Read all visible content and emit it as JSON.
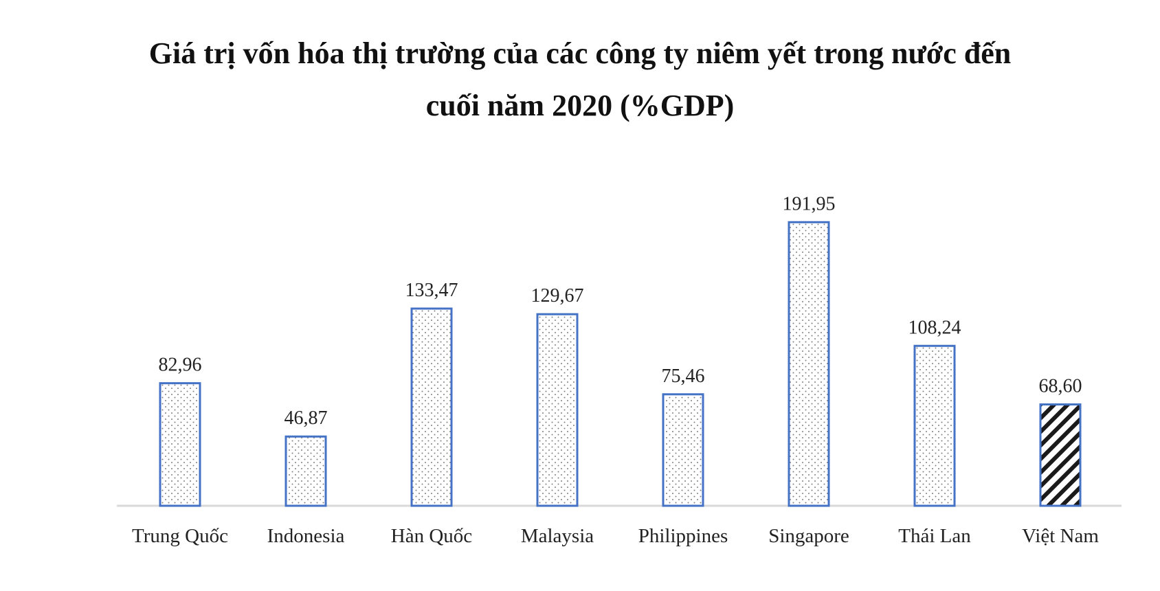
{
  "chart_data": {
    "type": "bar",
    "title_lines": [
      "Giá trị vốn hóa thị trường của các công ty niêm yết trong nước đến",
      "cuối năm 2020 (%GDP)"
    ],
    "categories": [
      "Trung Quốc",
      "Indonesia",
      "Hàn Quốc",
      "Malaysia",
      "Philippines",
      "Singapore",
      "Thái Lan",
      "Việt Nam"
    ],
    "values": [
      82.96,
      46.87,
      133.47,
      129.67,
      75.46,
      191.95,
      108.24,
      68.6
    ],
    "value_labels": [
      "82,96",
      "46,87",
      "133,47",
      "129,67",
      "75,46",
      "191,95",
      "108,24",
      "68,60"
    ],
    "highlight_category": "Việt Nam",
    "xlabel": "",
    "ylabel": "",
    "ylim": [
      0,
      200
    ],
    "grid": false,
    "legend": "none",
    "colors": {
      "bar_border": "#4472c4",
      "bar_fill": "#ffffff",
      "dot_pattern": "#7f7f7f",
      "highlight_hatch": "#1a1a1a",
      "axis": "#d9d9d9",
      "text": "#222222"
    }
  }
}
